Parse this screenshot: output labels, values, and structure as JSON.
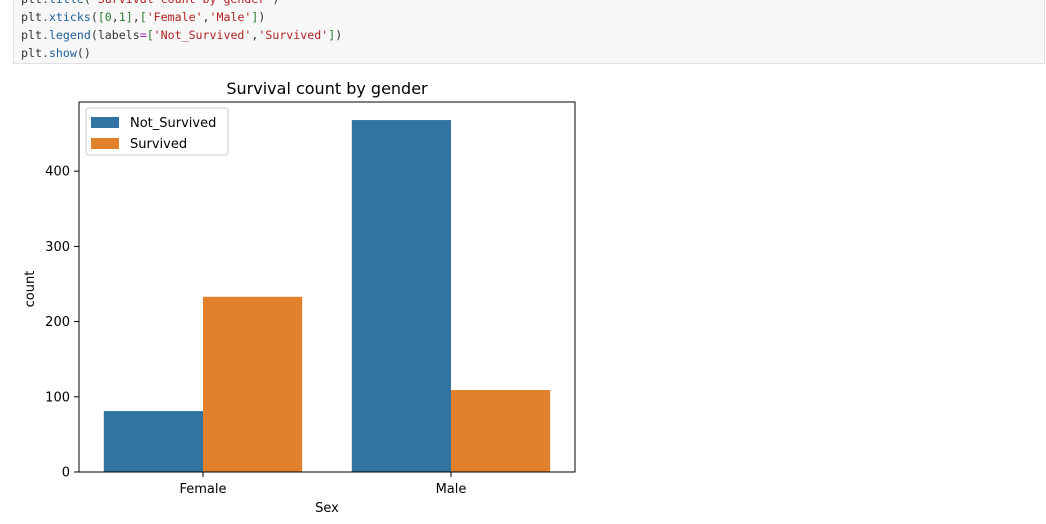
{
  "code": {
    "lines": [
      {
        "name": "plt",
        "dot": ".",
        "fn": "title",
        "open": "(",
        "parts": [
          {
            "cls": "str",
            "text": "'Survival count by gender'"
          }
        ],
        "close": ")"
      },
      {
        "name": "plt",
        "dot": ".",
        "fn": "xticks",
        "open": "(",
        "parts": [
          {
            "cls": "br",
            "text": "["
          },
          {
            "cls": "num",
            "text": "0"
          },
          {
            "cls": "pun",
            "text": ","
          },
          {
            "cls": "num",
            "text": "1"
          },
          {
            "cls": "br",
            "text": "]"
          },
          {
            "cls": "pun",
            "text": ","
          },
          {
            "cls": "br",
            "text": "["
          },
          {
            "cls": "str",
            "text": "'Female'"
          },
          {
            "cls": "pun",
            "text": ","
          },
          {
            "cls": "str",
            "text": "'Male'"
          },
          {
            "cls": "br",
            "text": "]"
          }
        ],
        "close": ")"
      },
      {
        "name": "plt",
        "dot": ".",
        "fn": "legend",
        "open": "(",
        "parts": [
          {
            "cls": "kw",
            "text": "labels"
          },
          {
            "cls": "eq",
            "text": "="
          },
          {
            "cls": "br",
            "text": "["
          },
          {
            "cls": "str",
            "text": "'Not_Survived'"
          },
          {
            "cls": "pun",
            "text": ","
          },
          {
            "cls": "str",
            "text": "'Survived'"
          },
          {
            "cls": "br",
            "text": "]"
          }
        ],
        "close": ")"
      },
      {
        "name": "plt",
        "dot": ".",
        "fn": "show",
        "open": "(",
        "parts": [],
        "close": ")"
      }
    ]
  },
  "chart_data": {
    "type": "bar",
    "title": "Survival count by gender",
    "xlabel": "Sex",
    "ylabel": "count",
    "categories": [
      "Female",
      "Male"
    ],
    "series": [
      {
        "name": "Not_Survived",
        "values": [
          81,
          468
        ],
        "color": "#3274a1"
      },
      {
        "name": "Survived",
        "values": [
          233,
          109
        ],
        "color": "#e1812c"
      }
    ],
    "ylim": [
      0,
      492
    ],
    "yticks": [
      0,
      100,
      200,
      300,
      400
    ],
    "legend_position": "top-left",
    "grid": false
  }
}
